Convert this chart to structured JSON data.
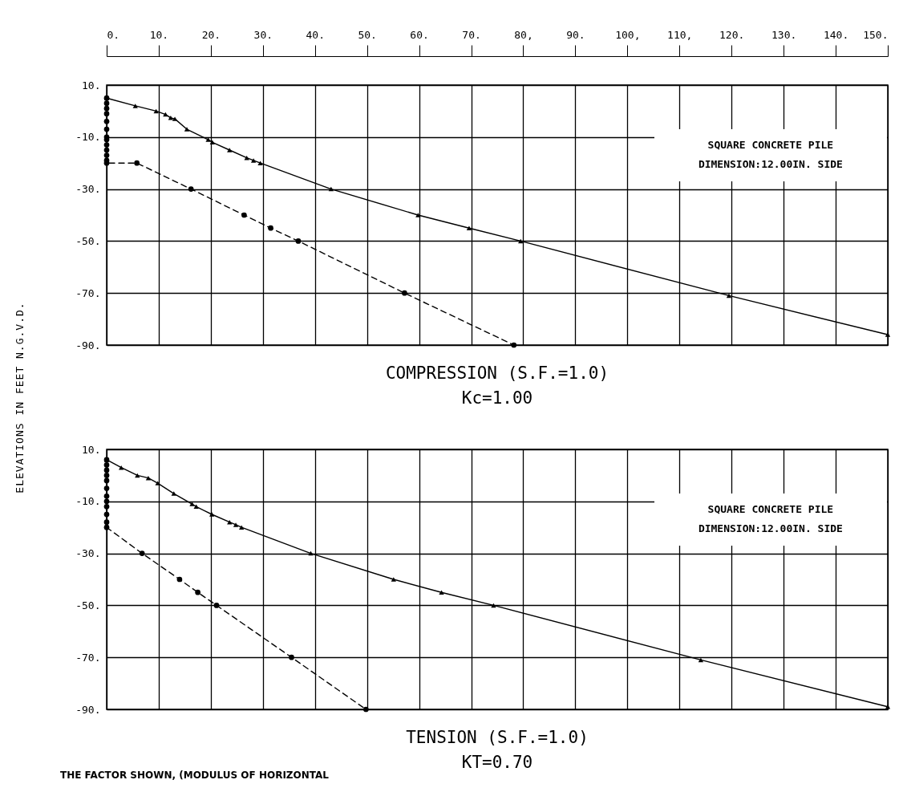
{
  "chart_data": [
    {
      "type": "line",
      "title": "COMPRESSION  (S.F.=1.0)",
      "subtitle": "Kc=1.00",
      "ylabel": "ELEVATIONS IN FEET N.G.V.D.",
      "annotations": [
        "SQUARE CONCRETE PILE\nDIMENSION:12.00IN. SIDE"
      ],
      "xlim": [
        0,
        150
      ],
      "xticks": [
        {
          "value": 0,
          "label": "0."
        },
        {
          "value": 10,
          "label": "10."
        },
        {
          "value": 20,
          "label": "20."
        },
        {
          "value": 30,
          "label": "30."
        },
        {
          "value": 40,
          "label": "40."
        },
        {
          "value": 50,
          "label": "50."
        },
        {
          "value": 60,
          "label": "60."
        },
        {
          "value": 70,
          "label": "70."
        },
        {
          "value": 80,
          "label": "80,"
        },
        {
          "value": 90,
          "label": "90."
        },
        {
          "value": 100,
          "label": "100,"
        },
        {
          "value": 110,
          "label": "110,"
        },
        {
          "value": 120,
          "label": "120."
        },
        {
          "value": 130,
          "label": "130."
        },
        {
          "value": 140,
          "label": "140."
        },
        {
          "value": 150,
          "label": "150."
        }
      ],
      "ylim": [
        -90,
        10
      ],
      "yticks": [
        {
          "value": 10,
          "label": "10."
        },
        {
          "value": -10,
          "label": "-10."
        },
        {
          "value": -30,
          "label": "-30."
        },
        {
          "value": -50,
          "label": "-50."
        },
        {
          "value": -70,
          "label": "-70."
        },
        {
          "value": -90,
          "label": "-90."
        }
      ],
      "grid": true,
      "series": [
        {
          "color": "#000000",
          "marker": "triangle",
          "line_style": "solid",
          "x": [
            0,
            5.5,
            9.5,
            11.3,
            12.3,
            13.1,
            15.4,
            19.5,
            20.3,
            23.6,
            26.9,
            28.2,
            29.5,
            43.1,
            59.8,
            69.6,
            79.5,
            119.5,
            150
          ],
          "values": [
            5,
            2,
            0,
            -1.3,
            -2.6,
            -3,
            -7,
            -11,
            -12,
            -15,
            -18,
            -19,
            -20,
            -30,
            -40,
            -45,
            -50,
            -71,
            -86
          ]
        },
        {
          "color": "#000000",
          "marker": "circle",
          "line_style": "dashed",
          "x": [
            0,
            0,
            0,
            0,
            0,
            0,
            0,
            0,
            0,
            0,
            0,
            0,
            0,
            5.8,
            16.2,
            26.4,
            31.5,
            36.8,
            57.2,
            78.2
          ],
          "values": [
            5,
            3,
            1,
            -1,
            -4,
            -7,
            -10,
            -11,
            -13,
            -15,
            -17,
            -19,
            -20,
            -20,
            -30,
            -40,
            -45,
            -50,
            -70,
            -90
          ]
        }
      ]
    },
    {
      "type": "line",
      "title": "TENSION  (S.F.=1.0)",
      "subtitle": "KT=0.70",
      "annotations": [
        "SQUARE CONCRETE PILE\nDIMENSION:12.00IN. SIDE",
        "THE FACTOR SHOWN, (MODULUS OF HORIZONTAL"
      ],
      "xlim": [
        0,
        150
      ],
      "xticks": [
        0,
        10,
        20,
        30,
        40,
        50,
        60,
        70,
        80,
        90,
        100,
        110,
        120,
        130,
        140,
        150
      ],
      "ylim": [
        -90,
        10
      ],
      "yticks": [
        {
          "value": 10,
          "label": "10."
        },
        {
          "value": -10,
          "label": "-10."
        },
        {
          "value": -30,
          "label": "-30."
        },
        {
          "value": -50,
          "label": "-50."
        },
        {
          "value": -70,
          "label": "-70."
        },
        {
          "value": -90,
          "label": "-90."
        }
      ],
      "grid": true,
      "tick_labels": "y",
      "series": [
        {
          "color": "#000000",
          "marker": "triangle",
          "line_style": "solid",
          "x": [
            0,
            2.8,
            5.9,
            8,
            9.8,
            12.9,
            16.4,
            17.2,
            20.2,
            23.6,
            24.8,
            25.9,
            39.2,
            55.1,
            64.3,
            74.3,
            114.1,
            150
          ],
          "values": [
            6,
            3,
            0,
            -1,
            -3,
            -7,
            -11,
            -12,
            -15,
            -18,
            -19,
            -20,
            -30,
            -40,
            -45,
            -50,
            -71,
            -89
          ]
        },
        {
          "color": "#000000",
          "marker": "circle",
          "line_style": "dashed",
          "x": [
            0,
            0,
            0,
            0,
            0,
            0,
            0,
            0,
            0,
            0,
            0,
            0,
            6.8,
            14,
            17.5,
            21.1,
            35.5,
            49.8
          ],
          "values": [
            6,
            4,
            2,
            0,
            -2,
            -5,
            -8,
            -10,
            -12,
            -15,
            -18,
            -20,
            -30,
            -40,
            -45,
            -50,
            -70,
            -90
          ]
        }
      ]
    }
  ]
}
